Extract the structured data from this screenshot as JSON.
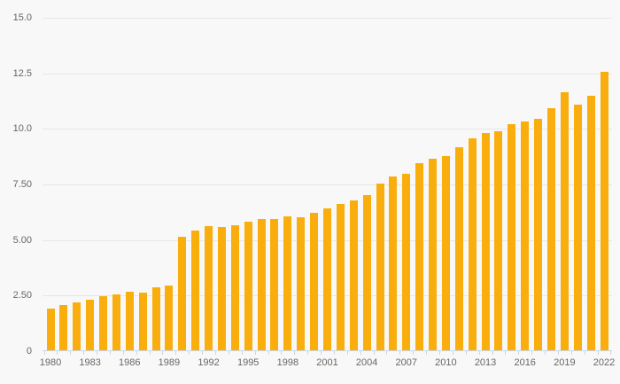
{
  "chart_data": {
    "type": "bar",
    "title": "",
    "xlabel": "",
    "ylabel": "",
    "legend": "none",
    "grid": true,
    "ylim": [
      0,
      15
    ],
    "y_ticks": [
      0,
      2.5,
      5,
      7.5,
      10,
      12.5,
      15
    ],
    "y_tick_labels": [
      "0",
      "2.50",
      "5.00",
      "7.50",
      "10.0",
      "12.5",
      "15.0"
    ],
    "x_tick_labels": [
      "1980",
      "1983",
      "1986",
      "1989",
      "1992",
      "1995",
      "1998",
      "2001",
      "2004",
      "2007",
      "2010",
      "2013",
      "2016",
      "2019",
      "2022"
    ],
    "categories": [
      1980,
      1981,
      1982,
      1983,
      1984,
      1985,
      1986,
      1987,
      1988,
      1989,
      1990,
      1991,
      1992,
      1993,
      1994,
      1995,
      1996,
      1997,
      1998,
      1999,
      2000,
      2001,
      2002,
      2003,
      2004,
      2005,
      2006,
      2007,
      2008,
      2009,
      2010,
      2011,
      2012,
      2013,
      2014,
      2015,
      2016,
      2017,
      2018,
      2019,
      2020,
      2021,
      2022
    ],
    "values": [
      1.9,
      2.06,
      2.21,
      2.33,
      2.46,
      2.57,
      2.68,
      2.64,
      2.86,
      2.95,
      5.14,
      5.43,
      5.64,
      5.57,
      5.66,
      5.81,
      5.93,
      5.93,
      6.07,
      6.04,
      6.22,
      6.42,
      6.62,
      6.79,
      7.03,
      7.56,
      7.86,
      7.98,
      8.46,
      8.67,
      8.79,
      9.16,
      9.59,
      9.83,
      9.88,
      10.21,
      10.33,
      10.45,
      10.92,
      11.64,
      11.09,
      11.48,
      12.56
    ]
  },
  "colors": {
    "background": "#f8f8f8",
    "bar": "#F9AE0E",
    "gridline": "#e6e6e6",
    "axis": "#ccd6eb",
    "tick": "#ccd6eb",
    "label": "#666666"
  }
}
